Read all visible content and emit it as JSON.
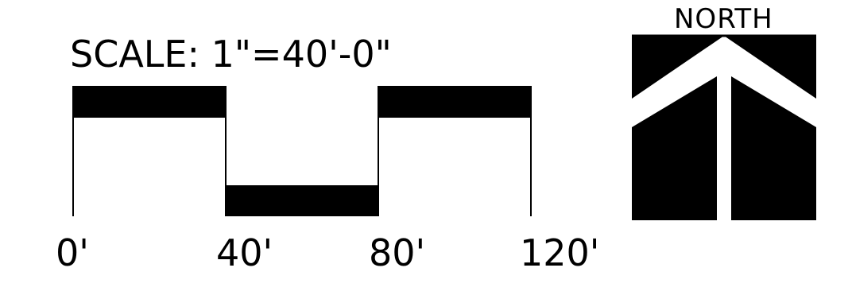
{
  "scale": {
    "title": "SCALE:  1\"=40'-0\"",
    "ticks": [
      "0'",
      "40'",
      "80'",
      "120'"
    ]
  },
  "north_arrow": {
    "label": "NORTH"
  },
  "colors": {
    "ink": "#000000",
    "paper": "#ffffff"
  }
}
